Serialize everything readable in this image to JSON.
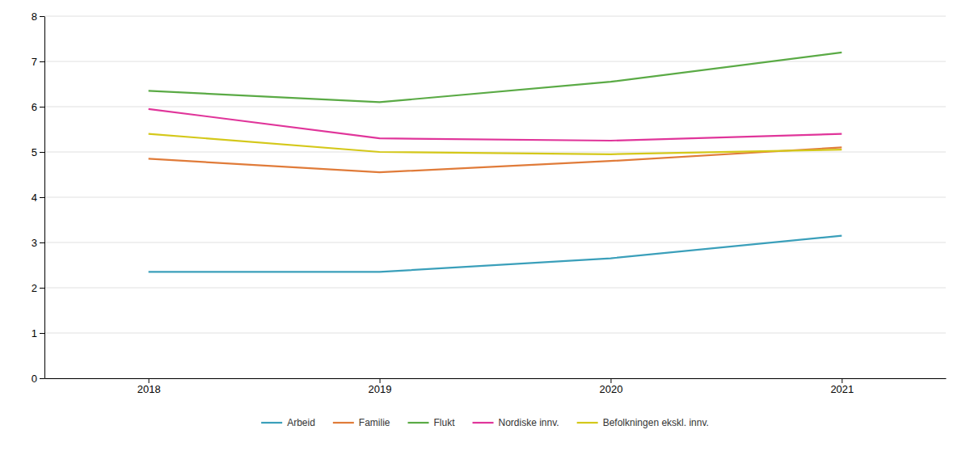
{
  "chart_data": {
    "type": "line",
    "x": [
      2018,
      2019,
      2020,
      2021
    ],
    "series": [
      {
        "name": "Arbeid",
        "color": "#3a9fba",
        "values": [
          2.35,
          2.35,
          2.65,
          3.15
        ]
      },
      {
        "name": "Familie",
        "color": "#e07b39",
        "values": [
          4.85,
          4.55,
          4.8,
          5.1
        ]
      },
      {
        "name": "Flukt",
        "color": "#5aaa45",
        "values": [
          6.35,
          6.1,
          6.55,
          7.2
        ]
      },
      {
        "name": "Nordiske innv.",
        "color": "#e0359a",
        "values": [
          5.95,
          5.3,
          5.25,
          5.4
        ]
      },
      {
        "name": "Befolkningen ekskl. innv.",
        "color": "#d4c81a",
        "values": [
          5.4,
          5.0,
          4.95,
          5.05
        ]
      }
    ],
    "xlim": [
      2017.55,
      2021.45
    ],
    "xticks": [
      2018,
      2019,
      2020,
      2021
    ],
    "ylim": [
      0,
      8
    ],
    "yticks": [
      0,
      1,
      2,
      3,
      4,
      5,
      6,
      7,
      8
    ],
    "grid": true,
    "legend": "bottom"
  }
}
